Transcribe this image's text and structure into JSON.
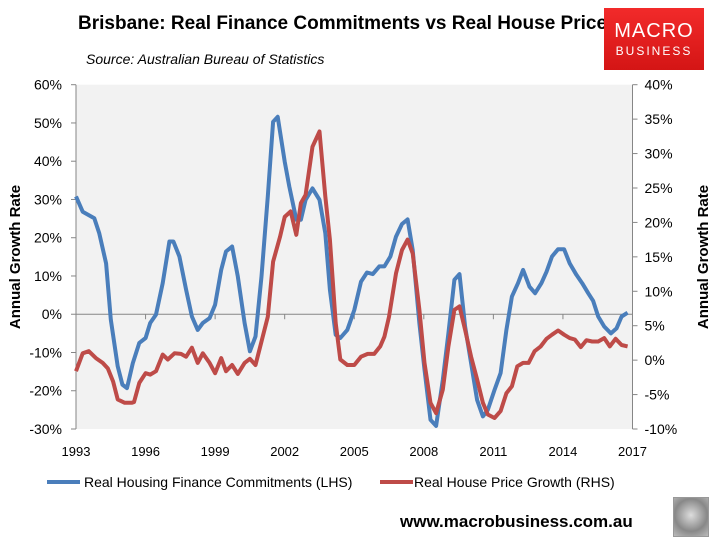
{
  "header": {
    "title": "Brisbane: Real Finance Commitments vs Real House Prices",
    "source": "Source: Australian Bureau of Statistics"
  },
  "logo": {
    "line1": "MACRO",
    "line2": "BUSINESS"
  },
  "footer": {
    "url": "www.macrobusiness.com.au"
  },
  "chart_data": {
    "type": "line",
    "title": "Brisbane: Real Finance Commitments vs Real House Prices",
    "ylabel": "Annual Growth Rate",
    "y2label": "Annual Growth Rate",
    "xlim": [
      1993,
      2017
    ],
    "ylim": [
      -30,
      60
    ],
    "y2lim": [
      -10,
      40
    ],
    "xticks": [
      "1993",
      "1996",
      "1999",
      "2002",
      "2005",
      "2008",
      "2011",
      "2014",
      "2017"
    ],
    "yticks": [
      "60%",
      "50%",
      "40%",
      "30%",
      "20%",
      "10%",
      "0%",
      "-10%",
      "-20%",
      "-30%"
    ],
    "y2ticks": [
      "40%",
      "35%",
      "30%",
      "25%",
      "20%",
      "15%",
      "10%",
      "5%",
      "0%",
      "-5%",
      "-10%"
    ],
    "legend_position": "bottom",
    "colors": {
      "blue": "#4a7ebb",
      "red": "#be4b48"
    },
    "series": [
      {
        "name": "Real Housing Finance Commitments (LHS)",
        "axis": "left",
        "color": "#4a7ebb",
        "points": [
          [
            1993.0,
            30.8
          ],
          [
            1993.29,
            26.8
          ],
          [
            1993.79,
            25.1
          ],
          [
            1994.0,
            21.2
          ],
          [
            1994.3,
            13.3
          ],
          [
            1994.5,
            -1.4
          ],
          [
            1994.8,
            -13.6
          ],
          [
            1995.0,
            -18.4
          ],
          [
            1995.2,
            -19.3
          ],
          [
            1995.45,
            -12.8
          ],
          [
            1995.73,
            -7.5
          ],
          [
            1996.0,
            -6.2
          ],
          [
            1996.2,
            -2.3
          ],
          [
            1996.45,
            -0.1
          ],
          [
            1996.74,
            8.1
          ],
          [
            1997.03,
            19.0
          ],
          [
            1997.2,
            19.0
          ],
          [
            1997.46,
            15.1
          ],
          [
            1997.75,
            6.4
          ],
          [
            1998.0,
            -0.6
          ],
          [
            1998.25,
            -4.1
          ],
          [
            1998.47,
            -2.3
          ],
          [
            1998.76,
            -1.0
          ],
          [
            1999.0,
            2.5
          ],
          [
            1999.26,
            11.6
          ],
          [
            1999.47,
            16.4
          ],
          [
            1999.73,
            17.7
          ],
          [
            1999.98,
            9.9
          ],
          [
            2000.27,
            -2.3
          ],
          [
            2000.5,
            -9.7
          ],
          [
            2000.74,
            -5.8
          ],
          [
            2001.0,
            9.9
          ],
          [
            2001.27,
            30.8
          ],
          [
            2001.5,
            50.3
          ],
          [
            2001.7,
            51.6
          ],
          [
            2002.0,
            39.9
          ],
          [
            2002.2,
            33.4
          ],
          [
            2002.5,
            24.7
          ],
          [
            2002.7,
            24.7
          ],
          [
            2002.9,
            29.9
          ],
          [
            2003.2,
            32.9
          ],
          [
            2003.5,
            29.9
          ],
          [
            2003.75,
            21.2
          ],
          [
            2003.95,
            6.4
          ],
          [
            2004.2,
            -5.4
          ],
          [
            2004.4,
            -6.2
          ],
          [
            2004.7,
            -4.1
          ],
          [
            2005.0,
            1.1
          ],
          [
            2005.29,
            8.5
          ],
          [
            2005.55,
            10.9
          ],
          [
            2005.8,
            10.5
          ],
          [
            2006.08,
            12.5
          ],
          [
            2006.3,
            12.5
          ],
          [
            2006.56,
            15.1
          ],
          [
            2006.8,
            20.3
          ],
          [
            2007.06,
            23.6
          ],
          [
            2007.3,
            24.8
          ],
          [
            2007.52,
            16.8
          ],
          [
            2007.81,
            -2.4
          ],
          [
            2008.03,
            -14.5
          ],
          [
            2008.29,
            -27.6
          ],
          [
            2008.53,
            -29.2
          ],
          [
            2008.82,
            -17.2
          ],
          [
            2009.06,
            -5.0
          ],
          [
            2009.32,
            9.0
          ],
          [
            2009.54,
            10.5
          ],
          [
            2009.78,
            -3.2
          ],
          [
            2010.04,
            -12.8
          ],
          [
            2010.3,
            -22.4
          ],
          [
            2010.55,
            -26.7
          ],
          [
            2010.76,
            -25.0
          ],
          [
            2011.05,
            -19.8
          ],
          [
            2011.31,
            -15.4
          ],
          [
            2011.56,
            -4.1
          ],
          [
            2011.8,
            4.6
          ],
          [
            2012.06,
            8.1
          ],
          [
            2012.28,
            11.6
          ],
          [
            2012.56,
            7.2
          ],
          [
            2012.8,
            5.5
          ],
          [
            2013.07,
            8.1
          ],
          [
            2013.29,
            11.1
          ],
          [
            2013.53,
            15.1
          ],
          [
            2013.79,
            17.0
          ],
          [
            2014.05,
            17.0
          ],
          [
            2014.29,
            13.3
          ],
          [
            2014.58,
            10.3
          ],
          [
            2014.83,
            8.1
          ],
          [
            2015.09,
            5.5
          ],
          [
            2015.3,
            3.5
          ],
          [
            2015.52,
            -0.6
          ],
          [
            2015.78,
            -3.2
          ],
          [
            2016.07,
            -5.0
          ],
          [
            2016.31,
            -3.7
          ],
          [
            2016.53,
            -0.6
          ],
          [
            2016.79,
            0.4
          ]
        ]
      },
      {
        "name": "Real House Price Growth (RHS)",
        "axis": "right",
        "color": "#be4b48",
        "points": [
          [
            1993.0,
            -1.6
          ],
          [
            1993.29,
            1.0
          ],
          [
            1993.55,
            1.3
          ],
          [
            1993.86,
            0.3
          ],
          [
            1994.15,
            -0.4
          ],
          [
            1994.37,
            -1.2
          ],
          [
            1994.6,
            -3.1
          ],
          [
            1994.8,
            -5.7
          ],
          [
            1995.1,
            -6.2
          ],
          [
            1995.4,
            -6.2
          ],
          [
            1995.5,
            -6.1
          ],
          [
            1995.73,
            -3.3
          ],
          [
            1996.0,
            -1.9
          ],
          [
            1996.2,
            -2.1
          ],
          [
            1996.45,
            -1.6
          ],
          [
            1996.74,
            0.8
          ],
          [
            1996.96,
            0.1
          ],
          [
            1997.25,
            1.0
          ],
          [
            1997.53,
            0.9
          ],
          [
            1997.75,
            0.5
          ],
          [
            1998.0,
            1.8
          ],
          [
            1998.25,
            -0.4
          ],
          [
            1998.47,
            1.0
          ],
          [
            1998.76,
            -0.4
          ],
          [
            1999.0,
            -1.9
          ],
          [
            1999.26,
            0.3
          ],
          [
            1999.47,
            -1.6
          ],
          [
            1999.73,
            -0.7
          ],
          [
            1999.98,
            -2.0
          ],
          [
            2000.27,
            -0.4
          ],
          [
            2000.5,
            0.2
          ],
          [
            2000.74,
            -0.7
          ],
          [
            2001.0,
            2.7
          ],
          [
            2001.27,
            6.3
          ],
          [
            2001.5,
            14.3
          ],
          [
            2001.8,
            17.9
          ],
          [
            2002.0,
            20.8
          ],
          [
            2002.26,
            21.6
          ],
          [
            2002.5,
            18.2
          ],
          [
            2002.7,
            22.8
          ],
          [
            2002.9,
            24.0
          ],
          [
            2003.2,
            31.0
          ],
          [
            2003.5,
            33.2
          ],
          [
            2003.75,
            23.8
          ],
          [
            2003.95,
            17.5
          ],
          [
            2004.2,
            5.4
          ],
          [
            2004.4,
            0.1
          ],
          [
            2004.7,
            -0.7
          ],
          [
            2005.0,
            -0.7
          ],
          [
            2005.29,
            0.5
          ],
          [
            2005.58,
            0.9
          ],
          [
            2005.86,
            0.9
          ],
          [
            2006.12,
            2.0
          ],
          [
            2006.3,
            3.4
          ],
          [
            2006.5,
            6.3
          ],
          [
            2006.8,
            12.6
          ],
          [
            2007.06,
            16.0
          ],
          [
            2007.3,
            17.5
          ],
          [
            2007.52,
            15.5
          ],
          [
            2007.81,
            7.3
          ],
          [
            2008.03,
            -0.4
          ],
          [
            2008.29,
            -6.2
          ],
          [
            2008.53,
            -7.7
          ],
          [
            2008.82,
            -4.3
          ],
          [
            2009.06,
            2.0
          ],
          [
            2009.32,
            7.3
          ],
          [
            2009.54,
            7.8
          ],
          [
            2009.78,
            4.4
          ],
          [
            2010.04,
            0.5
          ],
          [
            2010.3,
            -2.8
          ],
          [
            2010.55,
            -6.2
          ],
          [
            2010.76,
            -7.9
          ],
          [
            2011.05,
            -8.4
          ],
          [
            2011.31,
            -7.4
          ],
          [
            2011.56,
            -4.8
          ],
          [
            2011.8,
            -3.8
          ],
          [
            2012.03,
            -0.9
          ],
          [
            2012.28,
            -0.4
          ],
          [
            2012.52,
            -0.4
          ],
          [
            2012.78,
            1.3
          ],
          [
            2013.04,
            2.0
          ],
          [
            2013.29,
            3.1
          ],
          [
            2013.53,
            3.7
          ],
          [
            2013.79,
            4.3
          ],
          [
            2014.05,
            3.7
          ],
          [
            2014.29,
            3.2
          ],
          [
            2014.51,
            3.0
          ],
          [
            2014.77,
            1.9
          ],
          [
            2015.01,
            2.9
          ],
          [
            2015.26,
            2.7
          ],
          [
            2015.52,
            2.7
          ],
          [
            2015.78,
            3.2
          ],
          [
            2016.02,
            2.0
          ],
          [
            2016.27,
            3.1
          ],
          [
            2016.53,
            2.2
          ],
          [
            2016.79,
            2.0
          ]
        ]
      }
    ]
  }
}
